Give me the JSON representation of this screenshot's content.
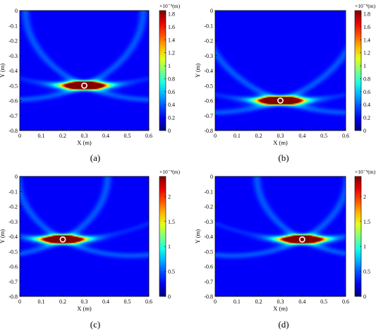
{
  "chart_data": [
    {
      "type": "heatmap",
      "caption": "(a)",
      "xlabel": "X (m)",
      "ylabel": "Y (m)",
      "xlim": [
        0,
        0.6
      ],
      "ylim": [
        -0.8,
        0
      ],
      "xticks": [
        "0",
        "0.1",
        "0.2",
        "0.3",
        "0.4",
        "0.5",
        "0.6"
      ],
      "yticks": [
        "0",
        "-0.1",
        "-0.2",
        "-0.3",
        "-0.4",
        "-0.5",
        "-0.6",
        "-0.7",
        "-0.8"
      ],
      "colorbar": {
        "unit_text": "×10⁻⁹(m)",
        "range": [
          0,
          1.85
        ],
        "ticks": [
          "0",
          "0.2",
          "0.4",
          "0.6",
          "0.8",
          "1",
          "1.2",
          "1.4",
          "1.6",
          "1.8"
        ],
        "tick_values": [
          0,
          0.2,
          0.4,
          0.6,
          0.8,
          1.0,
          1.2,
          1.4,
          1.6,
          1.8
        ]
      },
      "target": {
        "x": 0.3,
        "y": -0.5
      },
      "peak_value": 1.85
    },
    {
      "type": "heatmap",
      "caption": "(b)",
      "xlabel": "X (m)",
      "ylabel": "Y (m)",
      "xlim": [
        0,
        0.6
      ],
      "ylim": [
        -0.8,
        0
      ],
      "xticks": [
        "0",
        "0.1",
        "0.2",
        "0.3",
        "0.4",
        "0.5",
        "0.6"
      ],
      "yticks": [
        "0",
        "-0.1",
        "-0.2",
        "-0.3",
        "-0.4",
        "-0.5",
        "-0.6",
        "-0.7",
        "-0.8"
      ],
      "colorbar": {
        "unit_text": "×10⁻⁹(m)",
        "range": [
          0,
          1.85
        ],
        "ticks": [
          "0",
          "0.2",
          "0.4",
          "0.6",
          "0.8",
          "1",
          "1.2",
          "1.4",
          "1.6",
          "1.8"
        ],
        "tick_values": [
          0,
          0.2,
          0.4,
          0.6,
          0.8,
          1.0,
          1.2,
          1.4,
          1.6,
          1.8
        ]
      },
      "target": {
        "x": 0.3,
        "y": -0.6
      },
      "peak_value": 1.85
    },
    {
      "type": "heatmap",
      "caption": "(c)",
      "xlabel": "X (m)",
      "ylabel": "Y (m)",
      "xlim": [
        0,
        0.6
      ],
      "ylim": [
        -0.8,
        0
      ],
      "xticks": [
        "0",
        "0.1",
        "0.2",
        "0.3",
        "0.4",
        "0.5",
        "0.6"
      ],
      "yticks": [
        "0",
        "-0.1",
        "-0.2",
        "-0.3",
        "-0.4",
        "-0.5",
        "-0.6",
        "-0.7",
        "-0.8"
      ],
      "colorbar": {
        "unit_text": "×10⁻⁹(m)",
        "range": [
          0,
          2.4
        ],
        "ticks": [
          "0",
          "0.5",
          "1",
          "1.5",
          "2"
        ],
        "tick_values": [
          0,
          0.5,
          1.0,
          1.5,
          2.0
        ]
      },
      "target": {
        "x": 0.2,
        "y": -0.42
      },
      "peak_value": 2.4
    },
    {
      "type": "heatmap",
      "caption": "(d)",
      "xlabel": "X (m)",
      "ylabel": "Y (m)",
      "xlim": [
        0,
        0.6
      ],
      "ylim": [
        -0.8,
        0
      ],
      "xticks": [
        "0",
        "0.1",
        "0.2",
        "0.3",
        "0.4",
        "0.5",
        "0.6"
      ],
      "yticks": [
        "0",
        "-0.1",
        "-0.2",
        "-0.3",
        "-0.4",
        "-0.5",
        "-0.6",
        "-0.7",
        "-0.8"
      ],
      "colorbar": {
        "unit_text": "×10⁻⁹(m)",
        "range": [
          0,
          2.4
        ],
        "ticks": [
          "0",
          "0.5",
          "1",
          "1.5",
          "2"
        ],
        "tick_values": [
          0,
          0.5,
          1.0,
          1.5,
          2.0
        ]
      },
      "target": {
        "x": 0.4,
        "y": -0.42
      },
      "peak_value": 2.4
    }
  ]
}
